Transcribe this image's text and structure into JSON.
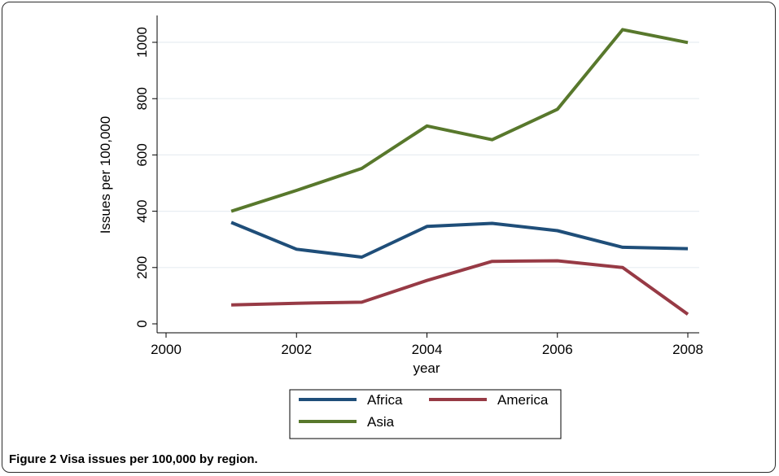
{
  "caption": {
    "label": "Figure 2",
    "text": "Visa issues per 100,000 by region."
  },
  "chart_data": {
    "type": "line",
    "title": "",
    "xlabel": "year",
    "ylabel": "Issues per 100,000",
    "xlim": [
      2000,
      2008
    ],
    "ylim": [
      0,
      1050
    ],
    "xticks": [
      2000,
      2002,
      2004,
      2006,
      2008
    ],
    "yticks": [
      0,
      200,
      400,
      600,
      800,
      1000
    ],
    "grid": "horizontal",
    "legend": "bottom",
    "x": [
      2001,
      2002,
      2003,
      2004,
      2005,
      2006,
      2007,
      2008
    ],
    "series": [
      {
        "name": "Africa",
        "color": "#1f4e79",
        "values": [
          360,
          265,
          237,
          346,
          357,
          331,
          272,
          267
        ]
      },
      {
        "name": "America",
        "color": "#973a45",
        "values": [
          67,
          73,
          77,
          154,
          222,
          224,
          200,
          34
        ]
      },
      {
        "name": "Asia",
        "color": "#58782c",
        "values": [
          400,
          474,
          552,
          703,
          654,
          762,
          1045,
          999
        ]
      }
    ]
  }
}
